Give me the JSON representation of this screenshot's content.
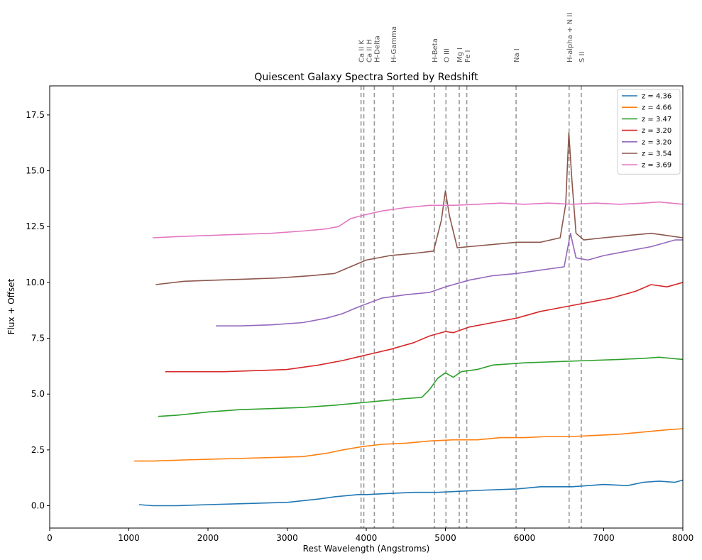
{
  "chart_data": {
    "type": "line",
    "title": "Quiescent Galaxy Spectra Sorted by Redshift",
    "xlabel": "Rest Wavelength (Angstroms)",
    "ylabel": "Flux + Offset",
    "xlim": [
      0,
      8000
    ],
    "ylim": [
      -1.0,
      18.8
    ],
    "x_ticks": [
      0,
      1000,
      2000,
      3000,
      4000,
      5000,
      6000,
      7000,
      8000
    ],
    "x_tick_labels": [
      "0",
      "1000",
      "2000",
      "3000",
      "4000",
      "5000",
      "6000",
      "7000",
      "8000"
    ],
    "y_ticks": [
      0.0,
      2.5,
      5.0,
      7.5,
      10.0,
      12.5,
      15.0,
      17.5
    ],
    "y_tick_labels": [
      "0.0",
      "2.5",
      "5.0",
      "7.5",
      "10.0",
      "12.5",
      "15.0",
      "17.5"
    ],
    "grid": false,
    "legend_position": "top-right",
    "spectral_lines": [
      {
        "label": "Ca II K",
        "x": 3934
      },
      {
        "label": "Ca II H",
        "x": 3969
      },
      {
        "label": "H-Delta",
        "x": 4102
      },
      {
        "label": "H-Gamma",
        "x": 4341
      },
      {
        "label": "H-Beta",
        "x": 4861
      },
      {
        "label": "O III",
        "x": 5007
      },
      {
        "label": "Mg I",
        "x": 5175
      },
      {
        "label": "Fe I",
        "x": 5270
      },
      {
        "label": "Na I",
        "x": 5893
      },
      {
        "label": "H-alpha + N II",
        "x": 6563
      },
      {
        "label": "S II",
        "x": 6717
      }
    ],
    "series": [
      {
        "name": "z = 4.36",
        "color": "#1f77b4",
        "x": [
          1130,
          1300,
          1600,
          2000,
          2500,
          3000,
          3400,
          3600,
          3900,
          4000,
          4300,
          4600,
          4900,
          5200,
          5500,
          5900,
          6200,
          6600,
          7000,
          7300,
          7500,
          7700,
          7900,
          8000
        ],
        "y": [
          0.05,
          0.0,
          0.0,
          0.05,
          0.1,
          0.15,
          0.3,
          0.4,
          0.5,
          0.5,
          0.55,
          0.6,
          0.6,
          0.65,
          0.7,
          0.75,
          0.85,
          0.85,
          0.95,
          0.9,
          1.05,
          1.1,
          1.05,
          1.15
        ]
      },
      {
        "name": "z = 4.66",
        "color": "#ff7f0e",
        "x": [
          1070,
          1300,
          1700,
          2200,
          2700,
          3200,
          3500,
          3700,
          3950,
          4200,
          4500,
          4800,
          5100,
          5400,
          5700,
          6000,
          6300,
          6600,
          6900,
          7200,
          7500,
          7800,
          8000
        ],
        "y": [
          2.0,
          2.0,
          2.05,
          2.1,
          2.15,
          2.2,
          2.35,
          2.5,
          2.65,
          2.75,
          2.8,
          2.9,
          2.95,
          2.95,
          3.05,
          3.05,
          3.1,
          3.1,
          3.15,
          3.2,
          3.3,
          3.4,
          3.45
        ]
      },
      {
        "name": "z = 3.47",
        "color": "#2ca02c",
        "x": [
          1370,
          1600,
          2000,
          2400,
          2800,
          3200,
          3600,
          3900,
          4200,
          4500,
          4700,
          4800,
          4900,
          5000,
          5100,
          5200,
          5400,
          5600,
          6000,
          6400,
          6800,
          7200,
          7500,
          7700,
          8000
        ],
        "y": [
          4.0,
          4.05,
          4.2,
          4.3,
          4.35,
          4.4,
          4.5,
          4.6,
          4.7,
          4.8,
          4.85,
          5.2,
          5.7,
          5.95,
          5.75,
          6.0,
          6.1,
          6.3,
          6.4,
          6.45,
          6.5,
          6.55,
          6.6,
          6.65,
          6.55
        ]
      },
      {
        "name": "z = 3.20",
        "color": "#d62728",
        "x": [
          1460,
          1800,
          2200,
          2600,
          3000,
          3400,
          3700,
          4000,
          4300,
          4600,
          4800,
          5000,
          5100,
          5300,
          5600,
          5900,
          6200,
          6500,
          6800,
          7100,
          7400,
          7600,
          7800,
          8000
        ],
        "y": [
          6.0,
          6.0,
          6.0,
          6.05,
          6.1,
          6.3,
          6.5,
          6.75,
          7.0,
          7.3,
          7.6,
          7.8,
          7.75,
          8.0,
          8.2,
          8.4,
          8.7,
          8.9,
          9.1,
          9.3,
          9.6,
          9.9,
          9.8,
          10.0
        ]
      },
      {
        "name": "z = 3.20",
        "color": "#9467bd",
        "x": [
          2100,
          2400,
          2800,
          3200,
          3500,
          3700,
          3900,
          4200,
          4500,
          4800,
          5000,
          5300,
          5600,
          5900,
          6200,
          6500,
          6580,
          6650,
          6800,
          7000,
          7300,
          7600,
          7900,
          8000
        ],
        "y": [
          8.05,
          8.05,
          8.1,
          8.2,
          8.4,
          8.6,
          8.9,
          9.3,
          9.45,
          9.55,
          9.8,
          10.1,
          10.3,
          10.4,
          10.55,
          10.7,
          12.2,
          11.1,
          11.0,
          11.2,
          11.4,
          11.6,
          11.9,
          11.9
        ]
      },
      {
        "name": "z = 3.54",
        "color": "#8c564b",
        "x": [
          1340,
          1700,
          2100,
          2500,
          2900,
          3300,
          3600,
          3800,
          4000,
          4300,
          4600,
          4850,
          4950,
          5000,
          5050,
          5150,
          5300,
          5600,
          5900,
          6200,
          6450,
          6520,
          6560,
          6600,
          6650,
          6750,
          7000,
          7300,
          7600,
          7800,
          8000
        ],
        "y": [
          9.9,
          10.05,
          10.1,
          10.15,
          10.2,
          10.3,
          10.4,
          10.7,
          11.0,
          11.2,
          11.3,
          11.4,
          12.8,
          14.1,
          13.0,
          11.55,
          11.6,
          11.7,
          11.8,
          11.8,
          12.0,
          13.5,
          16.7,
          14.5,
          12.2,
          11.9,
          12.0,
          12.1,
          12.2,
          12.1,
          12.0
        ]
      },
      {
        "name": "z = 3.69",
        "color": "#e377c2",
        "x": [
          1300,
          1600,
          2000,
          2400,
          2800,
          3200,
          3500,
          3650,
          3800,
          3950,
          4200,
          4500,
          4800,
          5100,
          5400,
          5700,
          6000,
          6300,
          6600,
          6900,
          7200,
          7500,
          7700,
          8000
        ],
        "y": [
          12.0,
          12.05,
          12.1,
          12.15,
          12.2,
          12.3,
          12.4,
          12.5,
          12.85,
          13.0,
          13.2,
          13.35,
          13.45,
          13.45,
          13.5,
          13.55,
          13.5,
          13.55,
          13.5,
          13.55,
          13.5,
          13.55,
          13.6,
          13.5
        ]
      }
    ]
  }
}
